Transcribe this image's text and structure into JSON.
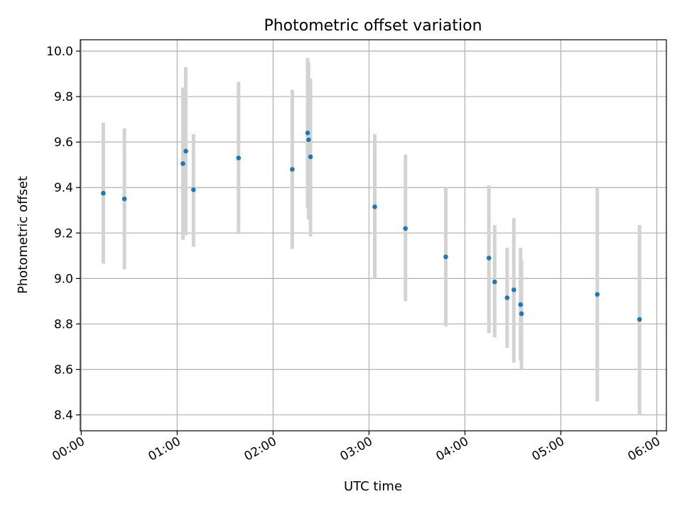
{
  "chart_data": {
    "type": "scatter",
    "title": "Photometric offset variation",
    "xlabel": "UTC time",
    "ylabel": "Photometric offset",
    "x_unit": "hours (UTC)",
    "xlim": [
      -0.01,
      6.1
    ],
    "ylim": [
      8.33,
      10.05
    ],
    "x_ticks": [
      0,
      1,
      2,
      3,
      4,
      5,
      6
    ],
    "x_tick_labels": [
      "00:00",
      "01:00",
      "02:00",
      "03:00",
      "04:00",
      "05:00",
      "06:00"
    ],
    "y_ticks": [
      8.4,
      8.6,
      8.8,
      9.0,
      9.2,
      9.4,
      9.6,
      9.8,
      10.0
    ],
    "y_tick_labels": [
      "8.4",
      "8.6",
      "8.8",
      "9.0",
      "9.2",
      "9.4",
      "9.6",
      "9.8",
      "10.0"
    ],
    "grid": true,
    "points": [
      {
        "x": 0.23,
        "y": 9.375,
        "lo": 9.065,
        "hi": 9.685
      },
      {
        "x": 0.45,
        "y": 9.35,
        "lo": 9.04,
        "hi": 9.66
      },
      {
        "x": 1.06,
        "y": 9.505,
        "lo": 9.17,
        "hi": 9.84
      },
      {
        "x": 1.09,
        "y": 9.56,
        "lo": 9.19,
        "hi": 9.93
      },
      {
        "x": 1.17,
        "y": 9.39,
        "lo": 9.14,
        "hi": 9.635
      },
      {
        "x": 1.64,
        "y": 9.53,
        "lo": 9.195,
        "hi": 9.865
      },
      {
        "x": 2.2,
        "y": 9.48,
        "lo": 9.13,
        "hi": 9.83
      },
      {
        "x": 2.36,
        "y": 9.64,
        "lo": 9.31,
        "hi": 9.97
      },
      {
        "x": 2.37,
        "y": 9.61,
        "lo": 9.26,
        "hi": 9.95
      },
      {
        "x": 2.39,
        "y": 9.535,
        "lo": 9.185,
        "hi": 9.88
      },
      {
        "x": 3.06,
        "y": 9.315,
        "lo": 9.0,
        "hi": 9.635
      },
      {
        "x": 3.38,
        "y": 9.22,
        "lo": 8.9,
        "hi": 9.545
      },
      {
        "x": 3.8,
        "y": 9.095,
        "lo": 8.79,
        "hi": 9.4
      },
      {
        "x": 4.25,
        "y": 9.09,
        "lo": 8.76,
        "hi": 9.41
      },
      {
        "x": 4.31,
        "y": 8.985,
        "lo": 8.74,
        "hi": 9.235
      },
      {
        "x": 4.44,
        "y": 8.915,
        "lo": 8.695,
        "hi": 9.135
      },
      {
        "x": 4.51,
        "y": 8.95,
        "lo": 8.63,
        "hi": 9.265
      },
      {
        "x": 4.58,
        "y": 8.885,
        "lo": 8.64,
        "hi": 9.135
      },
      {
        "x": 4.59,
        "y": 8.845,
        "lo": 8.6,
        "hi": 9.08
      },
      {
        "x": 5.38,
        "y": 8.93,
        "lo": 8.46,
        "hi": 9.4
      },
      {
        "x": 5.82,
        "y": 8.82,
        "lo": 8.4,
        "hi": 9.235
      }
    ],
    "marker_color": "#1f77b4",
    "errorbar_color": "#d3d3d3",
    "grid_color": "#b0b0b0"
  }
}
